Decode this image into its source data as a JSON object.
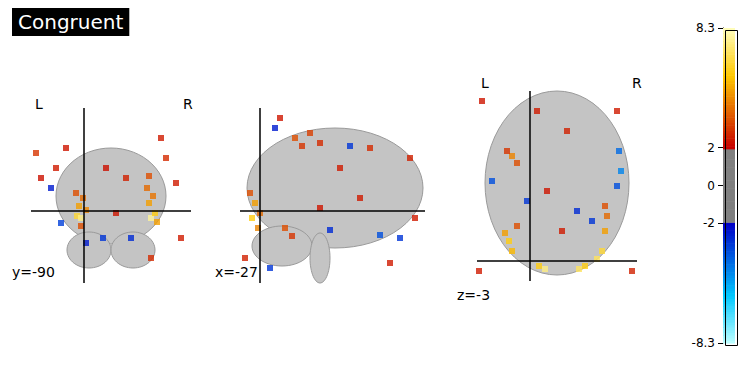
{
  "chart_data": {
    "type": "stat_map",
    "title": "Congruent",
    "tick_labels": false,
    "views": [
      {
        "type": "coronal",
        "cut_label": "y=-90",
        "orientation_labels": [
          "L",
          "R"
        ],
        "xlim": [
          -80,
          80
        ],
        "ylim": [
          -75,
          100
        ],
        "crosshair": [
          -27,
          -3
        ],
        "cells": [
          [
            -34,
            -8,
            6.5
          ],
          [
            -30,
            -10,
            7.5
          ],
          [
            -32,
            2,
            5
          ],
          [
            -28,
            10,
            4
          ],
          [
            -35,
            15,
            3.5
          ],
          [
            -25,
            -2,
            4.5
          ],
          [
            -30,
            -18,
            3.5
          ],
          [
            40,
            -10,
            7.8
          ],
          [
            44,
            -5,
            6
          ],
          [
            38,
            5,
            5
          ],
          [
            36,
            20,
            4
          ],
          [
            38,
            32,
            3.5
          ],
          [
            46,
            -14,
            5
          ],
          [
            42,
            12,
            4.2
          ],
          [
            -8,
            -30,
            -3
          ],
          [
            20,
            -30,
            -2.8
          ],
          [
            -50,
            -15,
            -3.2
          ],
          [
            -60,
            20,
            -2.5
          ],
          [
            -25,
            -35,
            -2.5
          ],
          [
            -75,
            55,
            3
          ],
          [
            -55,
            40,
            2.5
          ],
          [
            55,
            50,
            2.8
          ],
          [
            65,
            25,
            2.5
          ],
          [
            -70,
            30,
            2.3
          ],
          [
            15,
            30,
            2.6
          ],
          [
            5,
            -5,
            2.4
          ],
          [
            -5,
            40,
            2.3
          ],
          [
            70,
            -30,
            2.5
          ],
          [
            40,
            -50,
            2.8
          ],
          [
            -45,
            60,
            2.4
          ],
          [
            50,
            70,
            2.5
          ]
        ]
      },
      {
        "type": "sagittal",
        "cut_label": "x=-27",
        "xlim": [
          -110,
          75
        ],
        "ylim": [
          -75,
          100
        ],
        "crosshair": [
          -90,
          -3
        ],
        "cells": [
          [
            -98,
            -10,
            6
          ],
          [
            -95,
            5,
            5
          ],
          [
            -92,
            -20,
            4.5
          ],
          [
            -100,
            15,
            3.5
          ],
          [
            -90,
            -5,
            4
          ],
          [
            -65,
            -20,
            3.5
          ],
          [
            -58,
            -28,
            3
          ],
          [
            -55,
            70,
            3.5
          ],
          [
            -40,
            75,
            3.2
          ],
          [
            -48,
            62,
            3
          ],
          [
            -30,
            65,
            2.8
          ],
          [
            0,
            62,
            -3
          ],
          [
            30,
            -27,
            -3.5
          ],
          [
            -20,
            -22,
            -2.8
          ],
          [
            50,
            -30,
            -3
          ],
          [
            -80,
            -60,
            -3
          ],
          [
            -75,
            80,
            -2.5
          ],
          [
            60,
            50,
            2.6
          ],
          [
            20,
            60,
            2.8
          ],
          [
            -10,
            40,
            2.5
          ],
          [
            -30,
            0,
            2.4
          ],
          [
            10,
            10,
            2.5
          ],
          [
            65,
            -10,
            2.5
          ],
          [
            -105,
            -50,
            2.6
          ],
          [
            -70,
            90,
            2.4
          ],
          [
            40,
            -55,
            2.5
          ]
        ]
      },
      {
        "type": "axial",
        "cut_label": "z=-3",
        "orientation_labels": [
          "L",
          "R"
        ],
        "xlim": [
          -80,
          80
        ],
        "ylim": [
          -110,
          80
        ],
        "crosshair": [
          -27,
          -90
        ],
        "cells": [
          [
            -48,
            -70,
            6
          ],
          [
            -52,
            -62,
            5
          ],
          [
            -45,
            -80,
            5.5
          ],
          [
            -40,
            -55,
            3.5
          ],
          [
            -12,
            -98,
            7.5
          ],
          [
            -18,
            -95,
            6
          ],
          [
            22,
            -98,
            7
          ],
          [
            28,
            -95,
            6
          ],
          [
            45,
            -80,
            6.5
          ],
          [
            40,
            -88,
            7
          ],
          [
            48,
            -60,
            5
          ],
          [
            50,
            -45,
            4
          ],
          [
            48,
            -35,
            3.5
          ],
          [
            -45,
            15,
            4.5
          ],
          [
            -40,
            8,
            3.5
          ],
          [
            -50,
            20,
            3
          ],
          [
            62,
            20,
            -4
          ],
          [
            64,
            0,
            -4.5
          ],
          [
            60,
            -15,
            -3.5
          ],
          [
            -65,
            -10,
            -3.5
          ],
          [
            -30,
            -30,
            -3
          ],
          [
            20,
            -40,
            -2.8
          ],
          [
            35,
            -50,
            -3
          ],
          [
            -20,
            60,
            2.5
          ],
          [
            10,
            40,
            2.6
          ],
          [
            -10,
            -20,
            2.4
          ],
          [
            5,
            -60,
            2.5
          ],
          [
            60,
            60,
            2.5
          ],
          [
            -75,
            70,
            2.4
          ],
          [
            75,
            -100,
            2.6
          ],
          [
            -78,
            -100,
            2.5
          ]
        ]
      }
    ],
    "colorbar": {
      "range": [
        -8.3,
        8.3
      ],
      "ticks": [
        -8.3,
        -2,
        0,
        2,
        8.3
      ],
      "threshold": 2
    }
  }
}
